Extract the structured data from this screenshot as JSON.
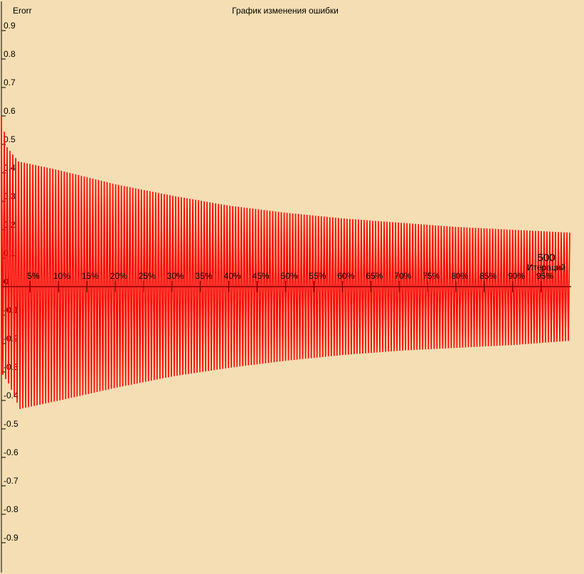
{
  "chart_data": {
    "type": "line",
    "title": "График изменения ошибки",
    "ylabel": "Erorr",
    "xlabel": "Итераций",
    "iterations_label": "500",
    "ylim": [
      -1.0,
      1.0
    ],
    "yticks": [
      0.9,
      0.8,
      0.7,
      0.6,
      0.5,
      0.4,
      0.3,
      0.2,
      0.1,
      0,
      -0.1,
      -0.2,
      -0.3,
      -0.4,
      -0.5,
      -0.6,
      -0.7,
      -0.8,
      -0.9
    ],
    "ytick_labels": [
      "0.9",
      "0.8",
      "0.7",
      "0.6",
      "0.5",
      "0.4",
      "0.3",
      "0.2",
      "0.1",
      "0",
      "-0.1",
      "-0.2",
      "-0.3",
      "-0.4",
      "-0.5",
      "-0.6",
      "-0.7",
      "-0.8",
      "-0.9"
    ],
    "xticks_percent": [
      5,
      10,
      15,
      20,
      25,
      30,
      35,
      40,
      45,
      50,
      55,
      60,
      65,
      70,
      75,
      80,
      85,
      90,
      95
    ],
    "xtick_labels": [
      "5%",
      "10%",
      "15%",
      "20%",
      "25%",
      "30%",
      "35%",
      "40%",
      "45%",
      "50%",
      "55%",
      "60%",
      "65%",
      "70%",
      "75%",
      "80%",
      "85%",
      "90%",
      "95%"
    ],
    "series": [
      {
        "color": "#ff0000",
        "style": "oscillation",
        "cycles": 199,
        "envelope_upper": [
          {
            "x_percent": 0,
            "y": 0.6
          },
          {
            "x_percent": 1,
            "y": 0.49
          },
          {
            "x_percent": 3,
            "y": 0.44
          },
          {
            "x_percent": 10,
            "y": 0.41
          },
          {
            "x_percent": 20,
            "y": 0.36
          },
          {
            "x_percent": 30,
            "y": 0.32
          },
          {
            "x_percent": 40,
            "y": 0.285
          },
          {
            "x_percent": 50,
            "y": 0.26
          },
          {
            "x_percent": 60,
            "y": 0.24
          },
          {
            "x_percent": 70,
            "y": 0.225
          },
          {
            "x_percent": 80,
            "y": 0.21
          },
          {
            "x_percent": 90,
            "y": 0.2
          },
          {
            "x_percent": 100,
            "y": 0.19
          }
        ],
        "envelope_lower": [
          {
            "x_percent": 0,
            "y": -0.31
          },
          {
            "x_percent": 1,
            "y": -0.34
          },
          {
            "x_percent": 3,
            "y": -0.43
          },
          {
            "x_percent": 10,
            "y": -0.4
          },
          {
            "x_percent": 20,
            "y": -0.355
          },
          {
            "x_percent": 30,
            "y": -0.315
          },
          {
            "x_percent": 40,
            "y": -0.285
          },
          {
            "x_percent": 50,
            "y": -0.26
          },
          {
            "x_percent": 60,
            "y": -0.24
          },
          {
            "x_percent": 70,
            "y": -0.225
          },
          {
            "x_percent": 80,
            "y": -0.215
          },
          {
            "x_percent": 90,
            "y": -0.205
          },
          {
            "x_percent": 100,
            "y": -0.19
          }
        ]
      }
    ]
  }
}
